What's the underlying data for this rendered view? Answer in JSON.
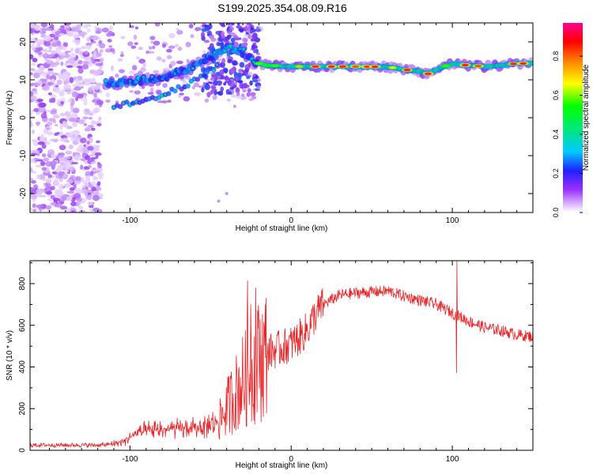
{
  "title": "S199.2025.354.08.09.R16",
  "chart_data": [
    {
      "type": "heatmap",
      "name": "spectrogram",
      "xlabel": "Height of straight line (km)",
      "ylabel": "Frequency (Hz)",
      "xlim": [
        -162,
        150
      ],
      "ylim": [
        -25,
        25
      ],
      "xticks": [
        -100,
        0,
        100
      ],
      "yticks": [
        -20,
        -10,
        0,
        10,
        20
      ],
      "ridge": {
        "x": [
          -115,
          -100,
          -90,
          -80,
          -70,
          -60,
          -50,
          -40,
          -30,
          -22,
          -15,
          0,
          20,
          40,
          60,
          72,
          80,
          85,
          90,
          95,
          100,
          110,
          120,
          130,
          140,
          150
        ],
        "freq": [
          9,
          9.5,
          10,
          10.5,
          12,
          13.5,
          16,
          18.5,
          17.5,
          14.5,
          13.8,
          13.5,
          13.5,
          13.5,
          13.4,
          12.6,
          12.2,
          11.6,
          12.6,
          13.5,
          14.2,
          13.8,
          13.5,
          13.8,
          14.3,
          14.3
        ]
      },
      "branch": {
        "x": [
          -110,
          -95,
          -80,
          -65,
          -55,
          -45
        ],
        "freq": [
          3,
          4.5,
          6,
          8.5,
          11,
          14
        ]
      },
      "colorbar": {
        "label": "Normalized spectral amplitude",
        "ticks": [
          "0.0",
          "0.2",
          "0.4",
          "0.6",
          "0.8"
        ],
        "range": [
          0,
          0.97
        ]
      }
    },
    {
      "type": "line",
      "name": "snr",
      "xlabel": "Height of straight line (km)",
      "ylabel": "SNR (10 * v/v)",
      "xlim": [
        -162,
        150
      ],
      "ylim": [
        0,
        910
      ],
      "xticks": [
        -100,
        0,
        100
      ],
      "yticks": [
        0,
        200,
        400,
        600,
        800
      ],
      "color": "#e8262a",
      "baseline": {
        "x": [
          -162,
          -140,
          -115,
          -105,
          -95,
          -80,
          -60,
          -45,
          -38,
          -30,
          -25,
          -20,
          -15,
          -10,
          -5,
          0,
          5,
          10,
          15,
          20,
          30,
          40,
          50,
          60,
          70,
          80,
          90,
          100,
          110,
          120,
          130,
          140,
          150
        ],
        "y": [
          25,
          25,
          25,
          40,
          85,
          100,
          105,
          135,
          230,
          330,
          380,
          430,
          470,
          480,
          495,
          510,
          540,
          580,
          650,
          700,
          745,
          755,
          760,
          765,
          740,
          720,
          700,
          660,
          620,
          590,
          575,
          555,
          545
        ]
      },
      "spikes": [
        {
          "x": -27,
          "y": 815
        },
        {
          "x": -22,
          "y": 780
        },
        {
          "x": -25,
          "y": 700
        },
        {
          "x": -20,
          "y": 650
        },
        {
          "x": 103,
          "y": 910
        },
        {
          "x": 102.5,
          "y": 370
        }
      ]
    }
  ]
}
